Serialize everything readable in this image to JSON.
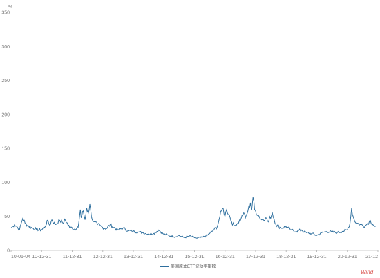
{
  "chart_data": {
    "type": "line",
    "title": "",
    "xlabel": "",
    "ylabel": "%",
    "ylim": [
      0,
      350
    ],
    "y_ticks": [
      0,
      50,
      100,
      150,
      200,
      250,
      300,
      350
    ],
    "x_tick_labels": [
      "10-01-04",
      "10-12-31",
      "11-12-31",
      "12-12-31",
      "13-12-31",
      "14-12-31",
      "15-12-31",
      "16-12-31",
      "17-12-31",
      "18-12-31",
      "19-12-31",
      "20-12-31",
      "21-12"
    ],
    "x_range": [
      "2010-01-04",
      "2021-12-31"
    ],
    "grid": false,
    "legend_position": "bottom",
    "color": "#2e6f9e",
    "series": [
      {
        "name": "美国原油ETF波动率指数",
        "points": [
          [
            "2010-01-04",
            33
          ],
          [
            "2010-02-15",
            38
          ],
          [
            "2010-03-15",
            35
          ],
          [
            "2010-04-15",
            30
          ],
          [
            "2010-05-10",
            42
          ],
          [
            "2010-05-25",
            48
          ],
          [
            "2010-06-20",
            40
          ],
          [
            "2010-08-01",
            36
          ],
          [
            "2010-09-15",
            33
          ],
          [
            "2010-11-01",
            31
          ],
          [
            "2010-12-31",
            30
          ],
          [
            "2011-02-20",
            36
          ],
          [
            "2011-03-10",
            44
          ],
          [
            "2011-04-10",
            37
          ],
          [
            "2011-05-06",
            45
          ],
          [
            "2011-06-15",
            38
          ],
          [
            "2011-08-08",
            44
          ],
          [
            "2011-09-20",
            40
          ],
          [
            "2011-10-05",
            46
          ],
          [
            "2011-11-15",
            37
          ],
          [
            "2011-12-31",
            34
          ],
          [
            "2012-02-15",
            30
          ],
          [
            "2012-03-15",
            34
          ],
          [
            "2012-04-10",
            60
          ],
          [
            "2012-04-20",
            48
          ],
          [
            "2012-05-15",
            58
          ],
          [
            "2012-06-05",
            45
          ],
          [
            "2012-06-25",
            62
          ],
          [
            "2012-07-15",
            55
          ],
          [
            "2012-08-01",
            68
          ],
          [
            "2012-08-20",
            50
          ],
          [
            "2012-09-20",
            42
          ],
          [
            "2012-11-01",
            38
          ],
          [
            "2012-12-31",
            34
          ],
          [
            "2013-02-15",
            32
          ],
          [
            "2013-04-01",
            38
          ],
          [
            "2013-05-01",
            35
          ],
          [
            "2013-07-01",
            30
          ],
          [
            "2013-09-01",
            33
          ],
          [
            "2013-11-01",
            29
          ],
          [
            "2013-12-31",
            28
          ],
          [
            "2014-03-01",
            27
          ],
          [
            "2014-05-01",
            26
          ],
          [
            "2014-07-01",
            24
          ],
          [
            "2014-09-01",
            25
          ],
          [
            "2014-11-01",
            30
          ],
          [
            "2014-12-31",
            24
          ],
          [
            "2015-03-01",
            22
          ],
          [
            "2015-05-01",
            20
          ],
          [
            "2015-07-01",
            22
          ],
          [
            "2015-09-01",
            19
          ],
          [
            "2015-11-01",
            21
          ],
          [
            "2015-12-31",
            19
          ],
          [
            "2016-02-01",
            18
          ],
          [
            "2016-04-01",
            19
          ],
          [
            "2016-06-01",
            22
          ],
          [
            "2016-08-01",
            28
          ],
          [
            "2016-10-01",
            35
          ],
          [
            "2016-11-01",
            50
          ],
          [
            "2016-11-20",
            58
          ],
          [
            "2016-12-10",
            62
          ],
          [
            "2016-12-31",
            50
          ],
          [
            "2017-01-20",
            60
          ],
          [
            "2017-02-20",
            52
          ],
          [
            "2017-03-20",
            42
          ],
          [
            "2017-04-20",
            36
          ],
          [
            "2017-06-01",
            40
          ],
          [
            "2017-07-15",
            48
          ],
          [
            "2017-08-10",
            55
          ],
          [
            "2017-09-01",
            48
          ],
          [
            "2017-10-01",
            58
          ],
          [
            "2017-11-01",
            70
          ],
          [
            "2017-11-15",
            60
          ],
          [
            "2017-12-01",
            78
          ],
          [
            "2017-12-20",
            60
          ],
          [
            "2018-02-01",
            52
          ],
          [
            "2018-03-15",
            45
          ],
          [
            "2018-05-01",
            48
          ],
          [
            "2018-06-01",
            42
          ],
          [
            "2018-07-20",
            55
          ],
          [
            "2018-09-01",
            38
          ],
          [
            "2018-11-01",
            33
          ],
          [
            "2018-12-31",
            35
          ],
          [
            "2019-03-01",
            30
          ],
          [
            "2019-05-01",
            28
          ],
          [
            "2019-07-01",
            30
          ],
          [
            "2019-09-01",
            26
          ],
          [
            "2019-11-01",
            25
          ],
          [
            "2019-12-31",
            22
          ],
          [
            "2020-03-01",
            26
          ],
          [
            "2020-05-01",
            28
          ],
          [
            "2020-07-01",
            27
          ],
          [
            "2020-09-01",
            26
          ],
          [
            "2020-11-01",
            28
          ],
          [
            "2020-12-31",
            30
          ],
          [
            "2021-02-01",
            40
          ],
          [
            "2021-02-20",
            62
          ],
          [
            "2021-03-10",
            50
          ],
          [
            "2021-04-01",
            42
          ],
          [
            "2021-06-01",
            38
          ],
          [
            "2021-08-01",
            36
          ],
          [
            "2021-09-01",
            40
          ],
          [
            "2021-10-01",
            44
          ],
          [
            "2021-11-01",
            38
          ],
          [
            "2021-12-01",
            35
          ]
        ]
      }
    ]
  },
  "unit": "%",
  "legend": {
    "label": "美国原油ETF波动率指数"
  },
  "source": "Wind"
}
